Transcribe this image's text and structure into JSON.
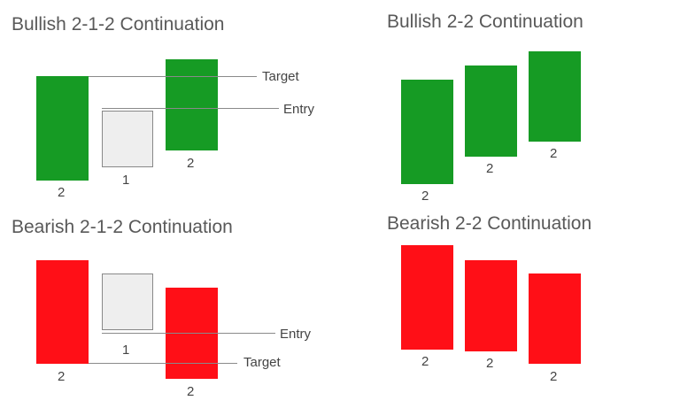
{
  "colors": {
    "bullish": "#169b24",
    "bearish": "#ff0f17",
    "inside_fill": "#eeeeee",
    "inside_border": "#888888",
    "line": "#8a8a8a"
  },
  "panels": {
    "bullish_212": {
      "title": "Bullish 2-1-2 Continuation",
      "candle_labels": [
        "2",
        "1",
        "2"
      ],
      "target_label": "Target",
      "entry_label": "Entry"
    },
    "bullish_22": {
      "title": "Bullish 2-2 Continuation",
      "candle_labels": [
        "2",
        "2",
        "2"
      ]
    },
    "bearish_212": {
      "title": "Bearish 2-1-2 Continuation",
      "candle_labels": [
        "2",
        "1",
        "2"
      ],
      "entry_label": "Entry",
      "target_label": "Target"
    },
    "bearish_22": {
      "title": "Bearish 2-2 Continuation",
      "candle_labels": [
        "2",
        "2",
        "2"
      ]
    }
  }
}
